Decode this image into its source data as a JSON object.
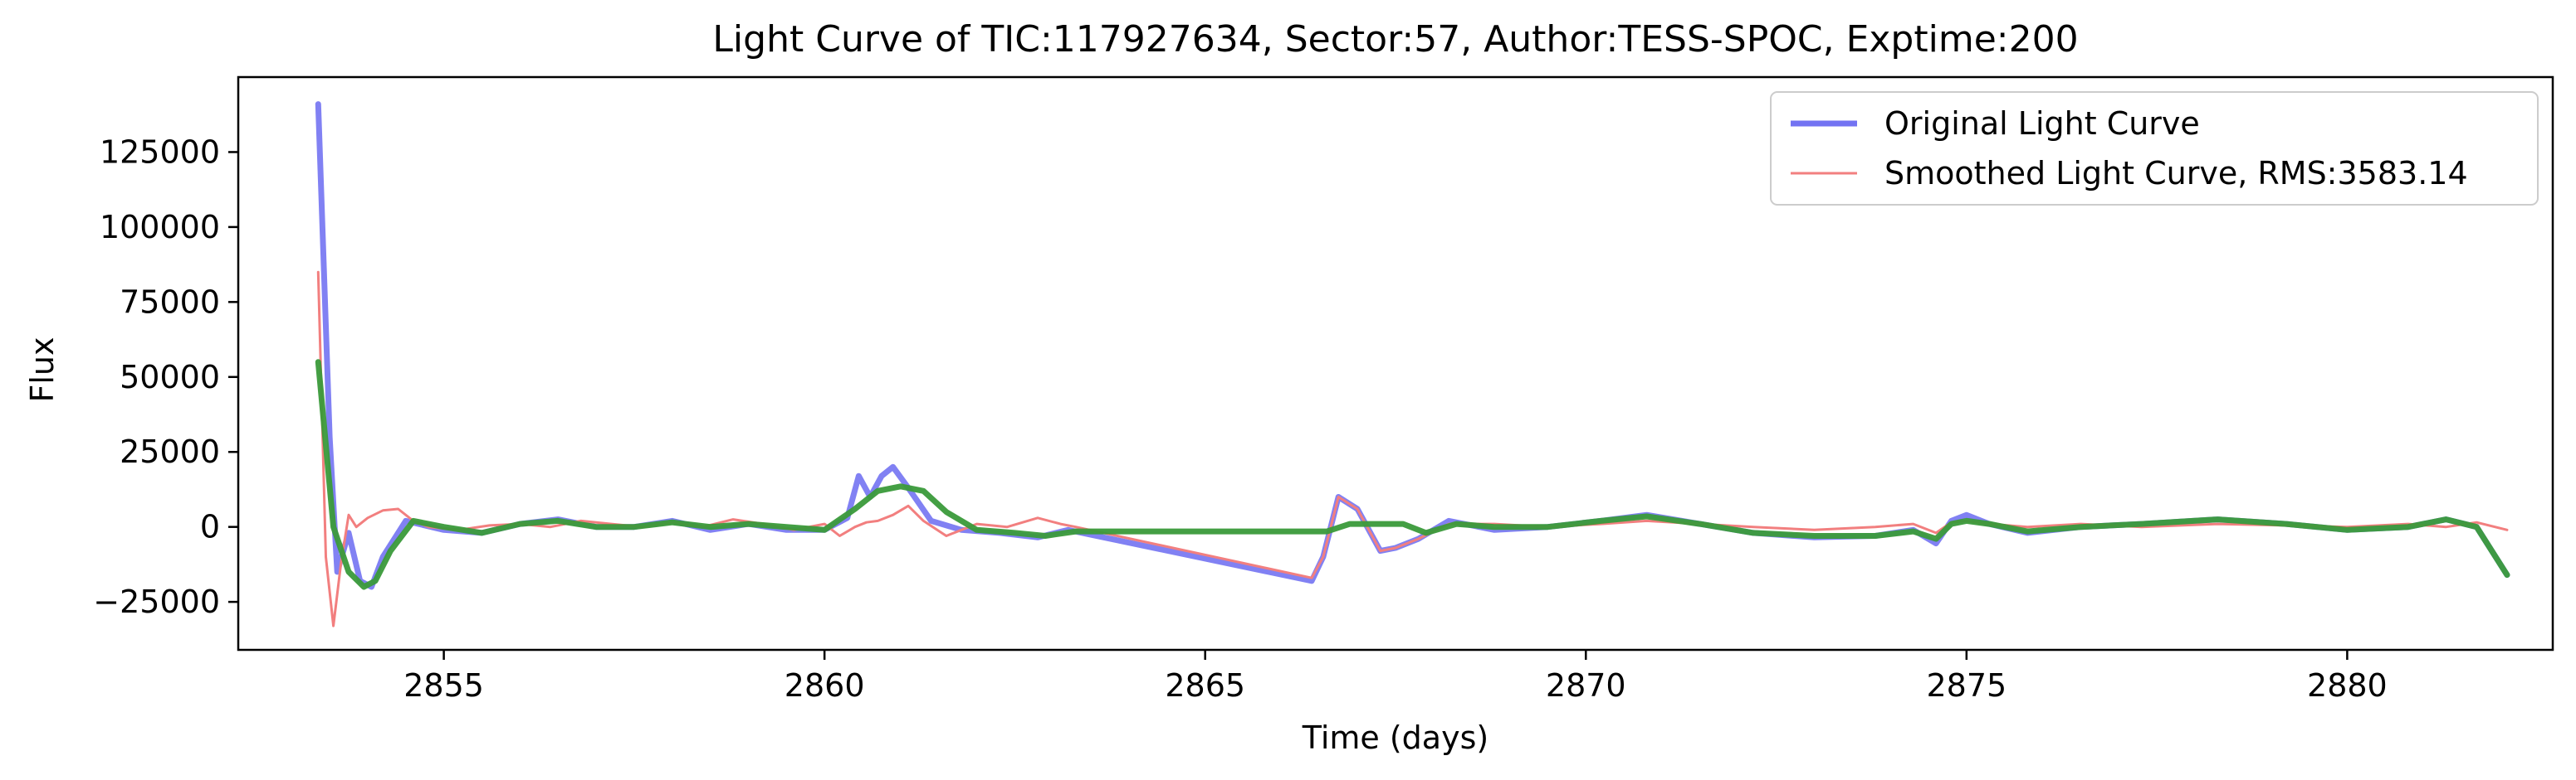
{
  "chart_data": {
    "type": "line",
    "title": "Light Curve of TIC:117927634, Sector:57, Author:TESS-SPOC, Exptime:200",
    "xlabel": "Time (days)",
    "ylabel": "Flux",
    "xlim": [
      2852.3,
      2882.7
    ],
    "ylim": [
      -41000,
      150000
    ],
    "xticks": [
      2855,
      2860,
      2865,
      2870,
      2875,
      2880
    ],
    "yticks": [
      -25000,
      0,
      25000,
      50000,
      75000,
      100000,
      125000
    ],
    "grid": false,
    "legend_position": "top-right",
    "legend": [
      {
        "label": "Original Light Curve",
        "color": "#7373f2"
      },
      {
        "label": "Smoothed Light Curve, RMS:3583.14",
        "color": "#f27f7f"
      }
    ],
    "series": [
      {
        "name": "Original Light Curve",
        "color": "#7373f2",
        "x": [
          2853.35,
          2853.5,
          2853.6,
          2853.75,
          2853.9,
          2854.05,
          2854.2,
          2854.5,
          2855.0,
          2855.5,
          2856.0,
          2856.5,
          2857.0,
          2857.5,
          2858.0,
          2858.5,
          2859.0,
          2859.5,
          2860.0,
          2860.3,
          2860.45,
          2860.6,
          2860.75,
          2860.9,
          2861.1,
          2861.4,
          2861.8,
          2862.3,
          2862.8,
          2863.2,
          2866.4,
          2866.55,
          2866.75,
          2867.0,
          2867.3,
          2867.5,
          2867.8,
          2868.2,
          2868.8,
          2869.5,
          2870.2,
          2870.8,
          2871.5,
          2872.2,
          2873.0,
          2873.8,
          2874.3,
          2874.6,
          2874.8,
          2875.0,
          2875.3,
          2875.8,
          2876.5,
          2877.3,
          2878.3,
          2879.2,
          2880.0,
          2880.8,
          2881.3,
          2881.7,
          2882.1
        ],
        "y": [
          141000,
          30000,
          -15000,
          -2000,
          -18000,
          -20000,
          -10000,
          2000,
          -1000,
          -2000,
          1000,
          2500,
          0,
          0,
          2000,
          -1000,
          1000,
          -1000,
          -1000,
          3000,
          17000,
          10000,
          17000,
          20000,
          13000,
          2000,
          -1000,
          -2000,
          -3500,
          -1000,
          -18000,
          -10000,
          10000,
          6000,
          -8000,
          -7000,
          -4000,
          2000,
          -1000,
          0,
          2000,
          4000,
          1000,
          -2000,
          -3500,
          -3000,
          -1000,
          -5500,
          2000,
          4000,
          1000,
          -2000,
          0,
          1000,
          2500,
          1000,
          -1000,
          0,
          2500,
          0,
          -16000
        ]
      },
      {
        "name": "Smoothed Light Curve, RMS:3583.14",
        "color": "#f27f7f",
        "x": [
          2853.35,
          2853.45,
          2853.55,
          2853.65,
          2853.75,
          2853.85,
          2854.0,
          2854.2,
          2854.4,
          2854.6,
          2854.8,
          2855.2,
          2855.6,
          2856.0,
          2856.4,
          2856.8,
          2857.2,
          2857.6,
          2858.0,
          2858.4,
          2858.8,
          2859.2,
          2859.6,
          2860.0,
          2860.2,
          2860.4,
          2860.55,
          2860.7,
          2860.9,
          2861.1,
          2861.3,
          2861.6,
          2862.0,
          2862.4,
          2862.8,
          2863.1,
          2863.3,
          2866.4,
          2866.55,
          2866.75,
          2867.0,
          2867.3,
          2867.5,
          2867.8,
          2868.2,
          2868.8,
          2869.5,
          2870.2,
          2870.8,
          2871.5,
          2872.2,
          2873.0,
          2873.8,
          2874.3,
          2874.6,
          2874.8,
          2875.0,
          2875.3,
          2875.8,
          2876.5,
          2877.3,
          2878.3,
          2879.2,
          2880.0,
          2880.8,
          2881.3,
          2881.7,
          2882.1
        ],
        "y": [
          85000,
          -10000,
          -33000,
          -12000,
          4000,
          0,
          3000,
          5500,
          6000,
          2000,
          0,
          -1000,
          500,
          1000,
          0,
          2000,
          1000,
          0,
          1500,
          0,
          2500,
          1000,
          -1000,
          1000,
          -3000,
          0,
          1500,
          2000,
          4000,
          7000,
          2000,
          -3000,
          1000,
          0,
          3000,
          1000,
          0,
          -17000,
          -10000,
          10000,
          6000,
          -8000,
          -7000,
          -4000,
          1000,
          1000,
          0,
          1000,
          2000,
          1000,
          0,
          -1000,
          0,
          1000,
          -2000,
          1500,
          2000,
          1000,
          0,
          1000,
          0,
          1000,
          500,
          0,
          1000,
          0,
          1500,
          -1000
        ]
      },
      {
        "name": "",
        "color": "#3a9a3a",
        "x": [
          2853.35,
          2853.55,
          2853.75,
          2853.95,
          2854.1,
          2854.3,
          2854.6,
          2855.0,
          2855.5,
          2856.0,
          2856.5,
          2857.0,
          2857.5,
          2858.0,
          2858.5,
          2859.0,
          2859.5,
          2860.0,
          2860.4,
          2860.7,
          2861.0,
          2861.3,
          2861.6,
          2862.0,
          2862.5,
          2862.9,
          2863.3,
          2864.0,
          2865.0,
          2866.0,
          2866.6,
          2866.9,
          2867.3,
          2867.6,
          2867.9,
          2868.3,
          2868.8,
          2869.5,
          2870.2,
          2870.8,
          2871.5,
          2872.2,
          2873.0,
          2873.8,
          2874.3,
          2874.6,
          2874.8,
          2875.0,
          2875.3,
          2875.8,
          2876.5,
          2877.3,
          2878.3,
          2879.2,
          2880.0,
          2880.8,
          2881.3,
          2881.7,
          2882.1
        ],
        "y": [
          55000,
          0,
          -15000,
          -20000,
          -18000,
          -8000,
          2000,
          0,
          -2000,
          1000,
          2000,
          0,
          0,
          1500,
          0,
          1000,
          0,
          -1000,
          6000,
          12000,
          13500,
          12000,
          5000,
          -1000,
          -2000,
          -3000,
          -1500,
          -1500,
          -1500,
          -1500,
          -1500,
          1000,
          1000,
          1000,
          -2000,
          1000,
          0,
          0,
          2000,
          3500,
          1000,
          -2000,
          -3000,
          -3000,
          -1500,
          -4000,
          1000,
          2000,
          1000,
          -1500,
          0,
          1000,
          2500,
          1000,
          -1000,
          0,
          2500,
          0,
          -16000
        ]
      }
    ]
  }
}
